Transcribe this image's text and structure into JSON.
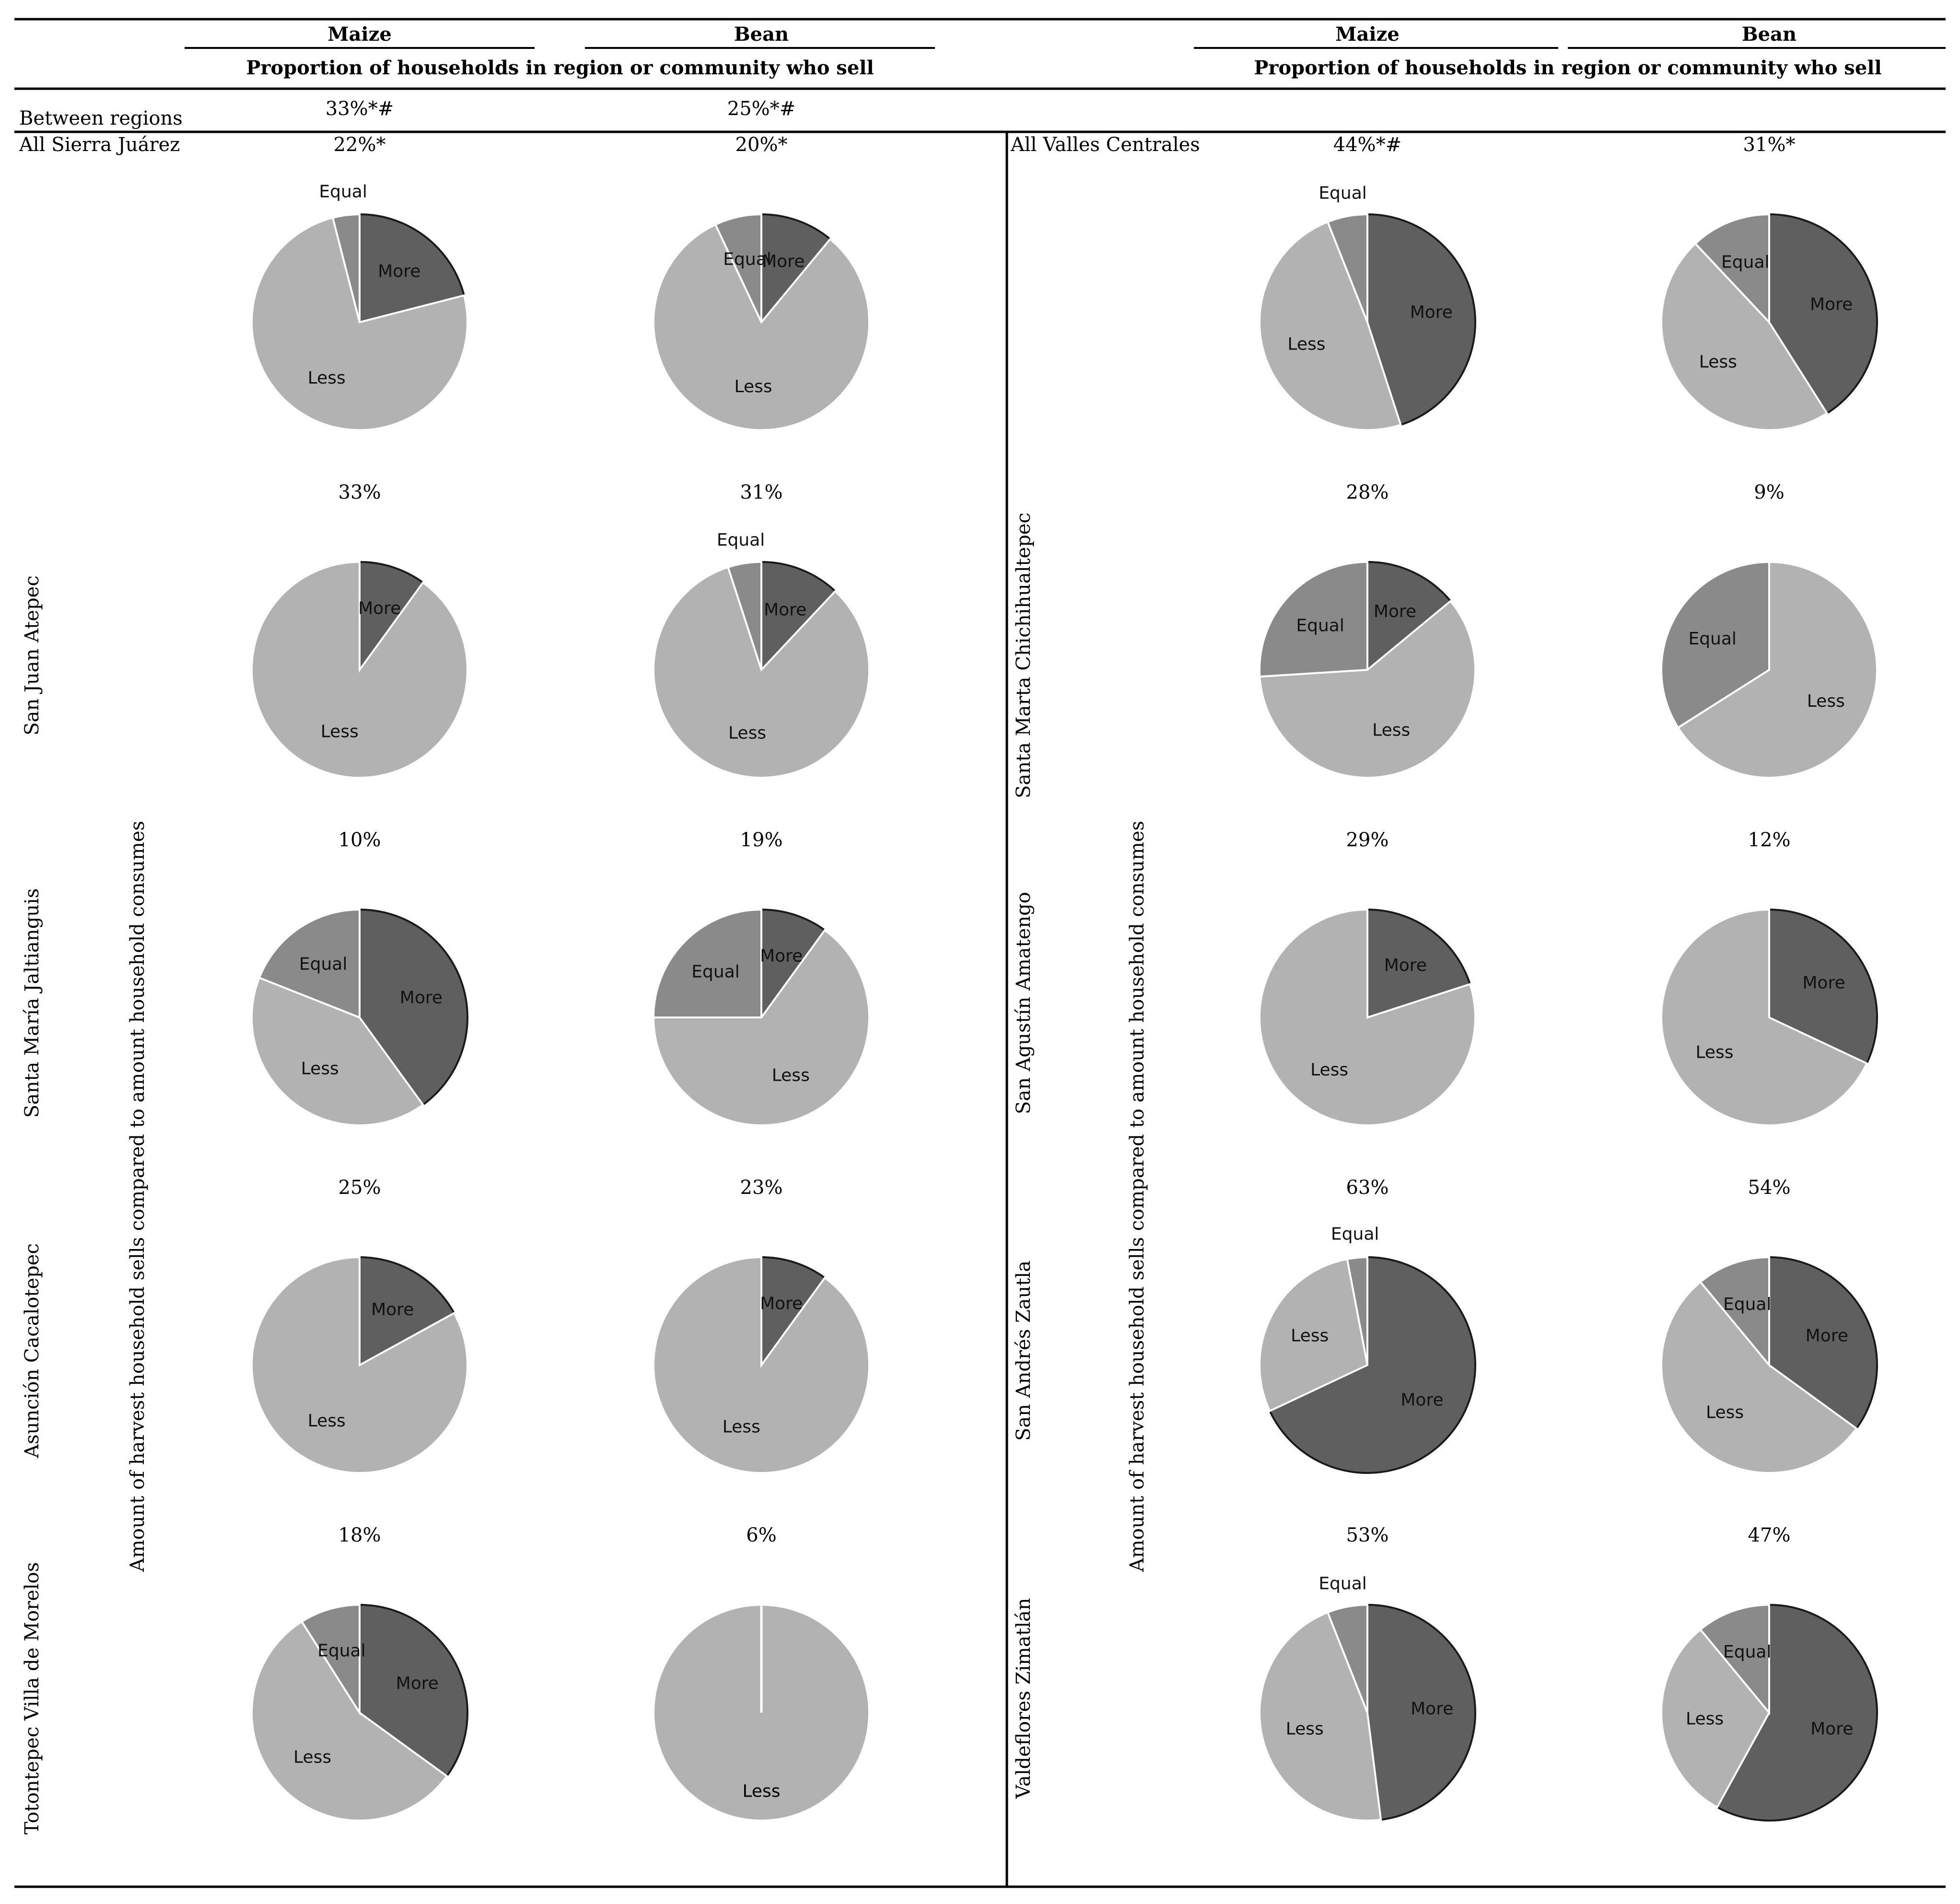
{
  "header": {
    "maize": "Maize",
    "bean": "Bean",
    "subtitle": "Proportion of households in region or community who sell"
  },
  "between_regions": {
    "label": "Between regions",
    "maize": "33%*#",
    "bean": "25%*#"
  },
  "y_axis_label": "Amount of harvest household sells compared to amount household consumes",
  "colors": {
    "More": "#5f5f5f",
    "Equal": "#8a8a8a",
    "Less": "#b2b2b2"
  },
  "chart_data": {
    "type": "pie",
    "categories": [
      "More",
      "Equal",
      "Less"
    ],
    "panels": [
      {
        "region": "Sierra Juárez",
        "rows": [
          {
            "label": "All Sierra Juárez",
            "maize": {
              "pct": "22%*",
              "values": [
                21,
                4,
                75
              ]
            },
            "bean": {
              "pct": "20%*",
              "values": [
                11,
                7,
                82
              ]
            }
          },
          {
            "label": "San Juan Atepec",
            "maize": {
              "pct": "33%",
              "values": [
                10,
                0,
                90
              ]
            },
            "bean": {
              "pct": "31%",
              "values": [
                12,
                5,
                83
              ]
            }
          },
          {
            "label": "Santa María Jaltianguis",
            "maize": {
              "pct": "10%",
              "values": [
                40,
                19,
                41
              ]
            },
            "bean": {
              "pct": "19%",
              "values": [
                10,
                25,
                65
              ]
            }
          },
          {
            "label": "Asunción Cacalotepec",
            "maize": {
              "pct": "25%",
              "values": [
                17,
                0,
                83
              ]
            },
            "bean": {
              "pct": "23%",
              "values": [
                10,
                0,
                90
              ]
            }
          },
          {
            "label": "Totontepec Villa de Morelos",
            "maize": {
              "pct": "18%",
              "values": [
                35,
                9,
                56
              ]
            },
            "bean": {
              "pct": "6%",
              "values": [
                0,
                0,
                100
              ]
            }
          }
        ]
      },
      {
        "region": "Valles Centrales",
        "rows": [
          {
            "label": "All Valles Centrales",
            "maize": {
              "pct": "44%*#",
              "values": [
                45,
                6,
                49
              ]
            },
            "bean": {
              "pct": "31%*",
              "values": [
                41,
                12,
                47
              ]
            }
          },
          {
            "label": "Santa Marta Chichihualtepec",
            "maize": {
              "pct": "28%",
              "values": [
                14,
                26,
                60
              ]
            },
            "bean": {
              "pct": "9%",
              "values": [
                0,
                34,
                66
              ]
            }
          },
          {
            "label": "San Agustín Amatengo",
            "maize": {
              "pct": "29%",
              "values": [
                20,
                0,
                80
              ]
            },
            "bean": {
              "pct": "12%",
              "values": [
                32,
                0,
                68
              ]
            }
          },
          {
            "label": "San Andrés Zautla",
            "maize": {
              "pct": "63%",
              "values": [
                68,
                3,
                29
              ]
            },
            "bean": {
              "pct": "54%",
              "values": [
                35,
                11,
                54
              ]
            }
          },
          {
            "label": "Valdeflores Zimatlán",
            "maize": {
              "pct": "53%",
              "values": [
                48,
                6,
                46
              ]
            },
            "bean": {
              "pct": "47%",
              "values": [
                58,
                11,
                31
              ]
            }
          }
        ]
      }
    ]
  }
}
